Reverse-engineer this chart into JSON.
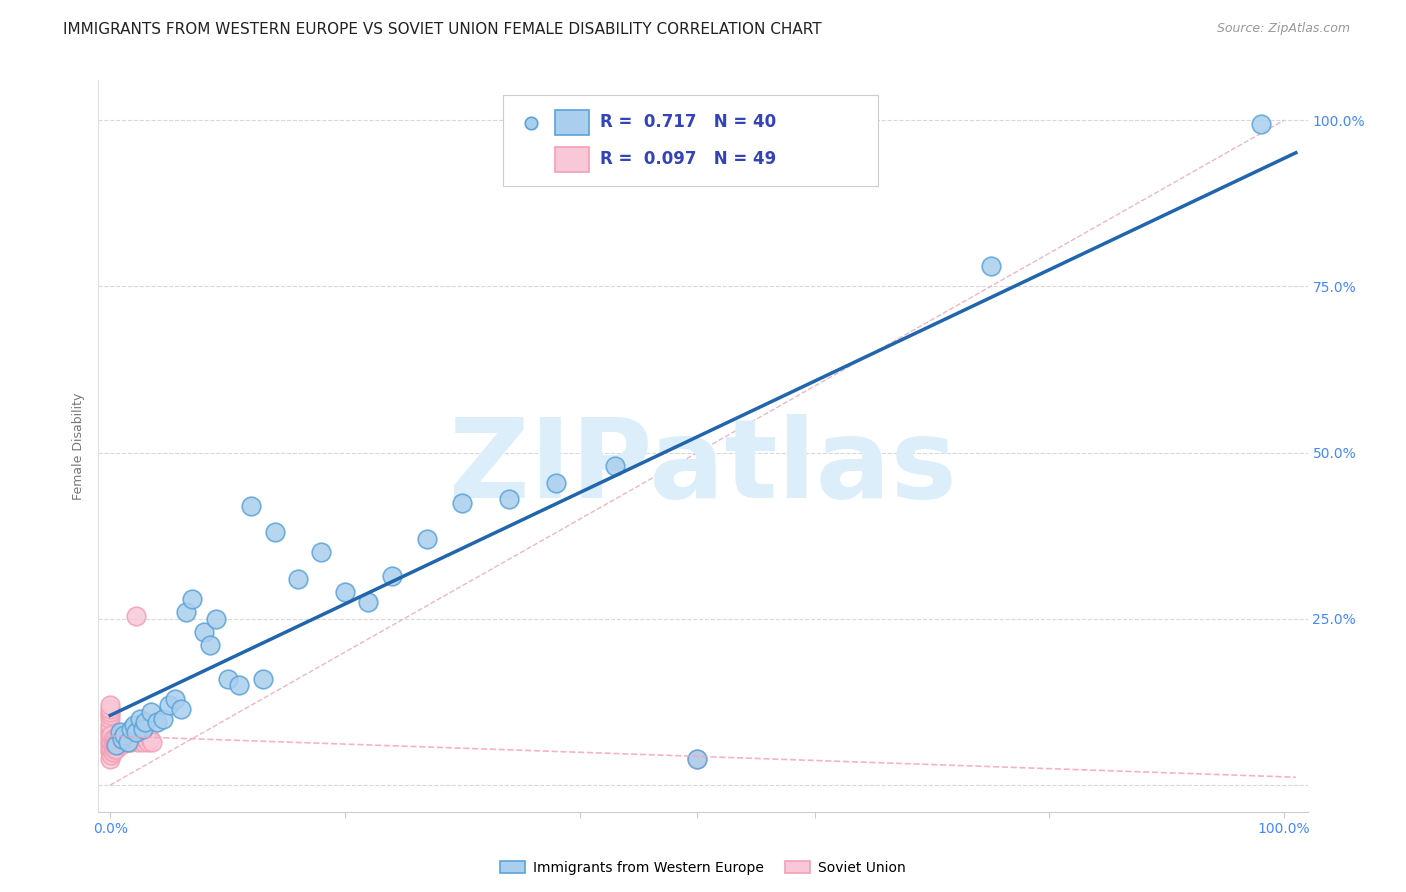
{
  "title": "IMMIGRANTS FROM WESTERN EUROPE VS SOVIET UNION FEMALE DISABILITY CORRELATION CHART",
  "source": "Source: ZipAtlas.com",
  "ylabel": "Female Disability",
  "legend_label_blue": "Immigrants from Western Europe",
  "legend_label_pink": "Soviet Union",
  "R_blue": "0.717",
  "N_blue": "40",
  "R_pink": "0.097",
  "N_pink": "49",
  "blue_scatter_x": [
    0.005,
    0.008,
    0.01,
    0.012,
    0.015,
    0.018,
    0.02,
    0.022,
    0.025,
    0.028,
    0.03,
    0.035,
    0.04,
    0.045,
    0.05,
    0.055,
    0.06,
    0.065,
    0.07,
    0.08,
    0.085,
    0.09,
    0.1,
    0.11,
    0.12,
    0.13,
    0.14,
    0.16,
    0.18,
    0.2,
    0.22,
    0.24,
    0.27,
    0.3,
    0.34,
    0.38,
    0.43,
    0.5,
    0.75,
    0.98
  ],
  "blue_scatter_y": [
    0.06,
    0.08,
    0.07,
    0.075,
    0.065,
    0.085,
    0.09,
    0.08,
    0.1,
    0.085,
    0.095,
    0.11,
    0.095,
    0.1,
    0.12,
    0.13,
    0.115,
    0.26,
    0.28,
    0.23,
    0.21,
    0.25,
    0.16,
    0.15,
    0.42,
    0.16,
    0.38,
    0.31,
    0.35,
    0.29,
    0.275,
    0.315,
    0.37,
    0.425,
    0.43,
    0.455,
    0.48,
    0.04,
    0.78,
    0.995
  ],
  "pink_scatter_x": [
    0.0,
    0.0,
    0.0,
    0.0,
    0.0,
    0.0,
    0.0,
    0.0,
    0.0,
    0.0,
    0.0,
    0.0,
    0.0,
    0.0,
    0.0,
    0.001,
    0.001,
    0.001,
    0.001,
    0.002,
    0.002,
    0.002,
    0.003,
    0.003,
    0.004,
    0.004,
    0.005,
    0.005,
    0.006,
    0.007,
    0.008,
    0.009,
    0.01,
    0.011,
    0.012,
    0.013,
    0.015,
    0.016,
    0.018,
    0.02,
    0.022,
    0.024,
    0.026,
    0.028,
    0.03,
    0.032,
    0.034,
    0.036,
    0.5
  ],
  "pink_scatter_y": [
    0.04,
    0.05,
    0.055,
    0.06,
    0.065,
    0.07,
    0.075,
    0.08,
    0.085,
    0.09,
    0.1,
    0.105,
    0.11,
    0.115,
    0.12,
    0.045,
    0.055,
    0.065,
    0.075,
    0.05,
    0.06,
    0.07,
    0.055,
    0.065,
    0.06,
    0.07,
    0.055,
    0.065,
    0.06,
    0.065,
    0.07,
    0.06,
    0.065,
    0.07,
    0.065,
    0.07,
    0.065,
    0.07,
    0.065,
    0.07,
    0.255,
    0.065,
    0.07,
    0.065,
    0.07,
    0.065,
    0.07,
    0.065,
    0.04
  ],
  "blue_line_x": [
    0.0,
    1.0
  ],
  "blue_line_y": [
    0.0,
    0.995
  ],
  "blue_color": "#5ba3d9",
  "blue_fill": "#aacfee",
  "blue_edge": "#5ba3d9",
  "pink_color": "#f4a0b5",
  "pink_fill": "#f9c8d8",
  "pink_edge": "#f4a0b5",
  "blue_line_color": "#2166ac",
  "diagonal_color": "#cccccc",
  "background_color": "#ffffff",
  "grid_color": "#d8d8d8",
  "title_color": "#222222",
  "axis_tick_color": "#4488ff",
  "watermark_color": "#dceefa",
  "watermark_text": "ZIPatlas"
}
